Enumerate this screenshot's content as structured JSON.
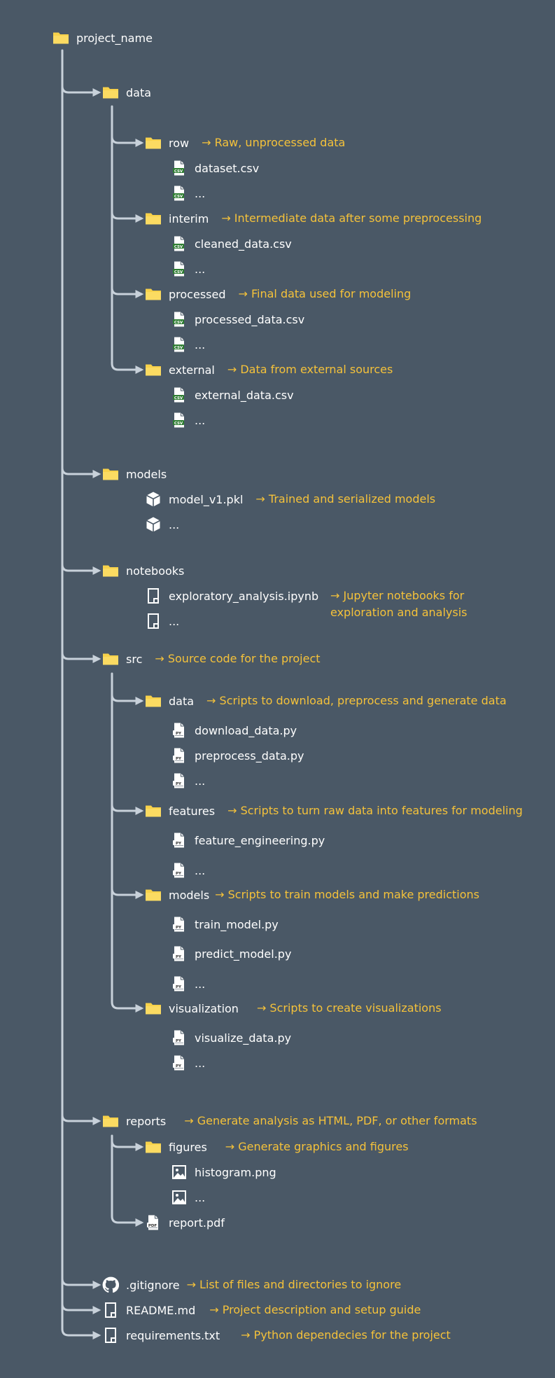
{
  "colors": {
    "background": "#4a5866",
    "connector": "#c8d1da",
    "folder": "#f7d14a",
    "description": "#f5c23a",
    "label": "#ffffff",
    "csv_badge": "#2e7d32"
  },
  "arrow_prefix": "→ ",
  "root": {
    "name": "project_name",
    "icon": "folder-icon"
  },
  "data": {
    "name": "data",
    "icon": "folder-icon",
    "row": {
      "name": "row",
      "desc": "Raw, unprocessed data",
      "files": [
        "dataset.csv",
        "..."
      ]
    },
    "interim": {
      "name": "interim",
      "desc": "Intermediate data after some preprocessing",
      "files": [
        "cleaned_data.csv",
        "..."
      ]
    },
    "processed": {
      "name": "processed",
      "desc": "Final data used for modeling",
      "files": [
        "processed_data.csv",
        "..."
      ]
    },
    "external": {
      "name": "external",
      "desc": "Data from external sources",
      "files": [
        "external_data.csv",
        "..."
      ]
    }
  },
  "models": {
    "name": "models",
    "desc": "Trained and serialized models",
    "files": [
      "model_v1.pkl",
      "..."
    ]
  },
  "notebooks": {
    "name": "notebooks",
    "desc": "Jupyter notebooks for exploration and analysis",
    "files": [
      "exploratory_analysis.ipynb",
      "..."
    ]
  },
  "src": {
    "name": "src",
    "desc": "Source code for the project",
    "data": {
      "name": "data",
      "desc": "Scripts to download, preprocess and generate data",
      "files": [
        "download_data.py",
        "preprocess_data.py",
        "..."
      ]
    },
    "features": {
      "name": "features",
      "desc": "Scripts to turn raw data into features for modeling",
      "files": [
        "feature_engineering.py",
        "..."
      ]
    },
    "models": {
      "name": "models",
      "desc": "Scripts to train models and make predictions",
      "files": [
        "train_model.py",
        "predict_model.py",
        "..."
      ]
    },
    "visualization": {
      "name": "visualization",
      "desc": "Scripts to create visualizations",
      "files": [
        "visualize_data.py",
        "..."
      ]
    }
  },
  "reports": {
    "name": "reports",
    "desc": "Generate analysis as HTML, PDF, or other formats",
    "figures": {
      "name": "figures",
      "desc": "Generate graphics and figures",
      "files": [
        "histogram.png",
        "..."
      ]
    },
    "report_file": "report.pdf"
  },
  "gitignore": {
    "name": ".gitignore",
    "desc": "List of files and directories to ignore"
  },
  "readme": {
    "name": "README.md",
    "desc": "Project description and setup guide"
  },
  "requirements": {
    "name": "requirements.txt",
    "desc": "Python dependecies for the project"
  },
  "icon_labels": {
    "csv": "CSV",
    "py": "PY",
    "pdf": "PDF"
  }
}
